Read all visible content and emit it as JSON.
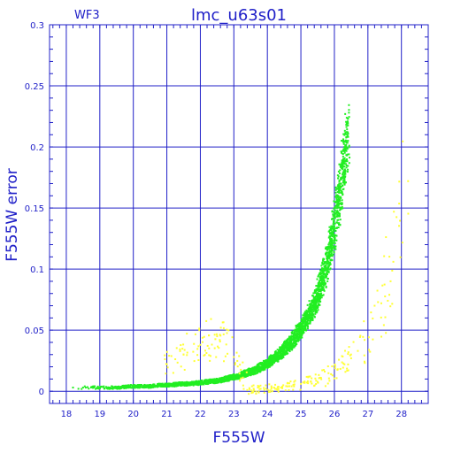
{
  "chart_data": {
    "type": "scatter",
    "title": "lmc_u63s01",
    "subtitle": "WF3",
    "xlabel": "F555W",
    "ylabel": "F555W error",
    "xlim": [
      17.5,
      28.8
    ],
    "ylim": [
      -0.01,
      0.3
    ],
    "x_ticks": [
      "18",
      "19",
      "20",
      "21",
      "22",
      "23",
      "24",
      "25",
      "26",
      "27",
      "28"
    ],
    "y_ticks": [
      "0",
      "0.05",
      "0.1",
      "0.15",
      "0.2",
      "0.25",
      "0.3"
    ],
    "grid": true,
    "colors": {
      "axes": "#2020c8",
      "series_main": "#22ee22",
      "series_secondary": "#ffff33"
    },
    "series": [
      {
        "color": "#22ee22",
        "x": [
          18.2,
          18.5,
          18.8,
          19.0,
          19.3,
          19.6,
          19.9,
          20.2,
          20.5,
          20.8,
          21.1,
          21.4,
          21.7,
          22.0,
          22.3,
          22.6,
          22.9,
          23.1,
          23.3,
          23.5,
          23.7,
          23.9,
          24.1,
          24.3,
          24.5,
          24.7,
          24.9,
          25.0,
          25.2,
          25.4,
          25.5,
          25.6,
          25.7,
          25.8,
          25.9,
          26.0,
          26.1,
          26.2,
          26.3,
          26.35,
          26.4
        ],
        "y": [
          0.003,
          0.003,
          0.003,
          0.003,
          0.003,
          0.003,
          0.004,
          0.004,
          0.004,
          0.005,
          0.005,
          0.006,
          0.006,
          0.007,
          0.008,
          0.009,
          0.011,
          0.012,
          0.014,
          0.016,
          0.018,
          0.021,
          0.025,
          0.029,
          0.034,
          0.04,
          0.047,
          0.051,
          0.06,
          0.071,
          0.078,
          0.086,
          0.096,
          0.107,
          0.12,
          0.135,
          0.152,
          0.17,
          0.19,
          0.2,
          0.212
        ]
      },
      {
        "color": "#ffff33",
        "x": [
          21.0,
          21.5,
          22.0,
          22.5,
          23.0,
          23.4,
          23.8,
          24.2,
          24.6,
          25.0,
          25.3,
          25.6,
          25.9,
          26.1,
          26.3,
          26.5,
          26.7,
          26.9,
          27.2,
          27.4,
          28.2
        ],
        "y": [
          0.022,
          0.03,
          0.038,
          0.045,
          0.028,
          0.001,
          0.002,
          0.003,
          0.004,
          0.006,
          0.008,
          0.011,
          0.014,
          0.018,
          0.022,
          0.027,
          0.033,
          0.042,
          0.07,
          0.072,
          0.172
        ]
      }
    ]
  }
}
